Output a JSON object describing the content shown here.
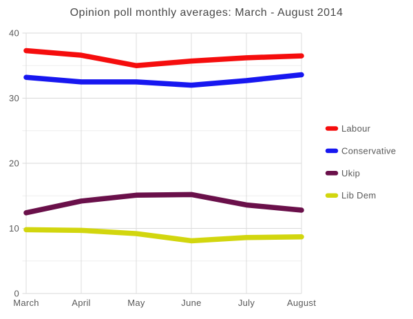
{
  "chart_data": {
    "type": "line",
    "title": "Opinion poll monthly averages: March - August 2014",
    "xlabel": "",
    "ylabel": "",
    "categories": [
      "March",
      "April",
      "May",
      "June",
      "July",
      "August"
    ],
    "series": [
      {
        "name": "Labour",
        "color": "#f50d0d",
        "values": [
          37.3,
          36.6,
          35.0,
          35.7,
          36.2,
          36.5
        ]
      },
      {
        "name": "Conservative",
        "color": "#1717f0",
        "values": [
          33.2,
          32.5,
          32.5,
          32.0,
          32.7,
          33.6
        ]
      },
      {
        "name": "Ukip",
        "color": "#6a104a",
        "values": [
          12.4,
          14.2,
          15.1,
          15.2,
          13.6,
          12.8
        ]
      },
      {
        "name": "Lib Dem",
        "color": "#d2d60e",
        "values": [
          9.8,
          9.7,
          9.2,
          8.1,
          8.6,
          8.7
        ]
      }
    ],
    "ylim": [
      0,
      40
    ],
    "yticks": [
      0,
      10,
      20,
      30,
      40
    ],
    "minor_yticks": [
      5,
      15,
      25,
      35
    ],
    "grid": true,
    "legend_position": "right"
  },
  "style": {
    "major_grid_color": "#d9d9d9",
    "minor_grid_color": "#eeeeee",
    "vertical_grid_color": "#dcdcdc",
    "axis_label_color": "#595959",
    "title_color": "#474747",
    "background_color": "#ffffff"
  }
}
